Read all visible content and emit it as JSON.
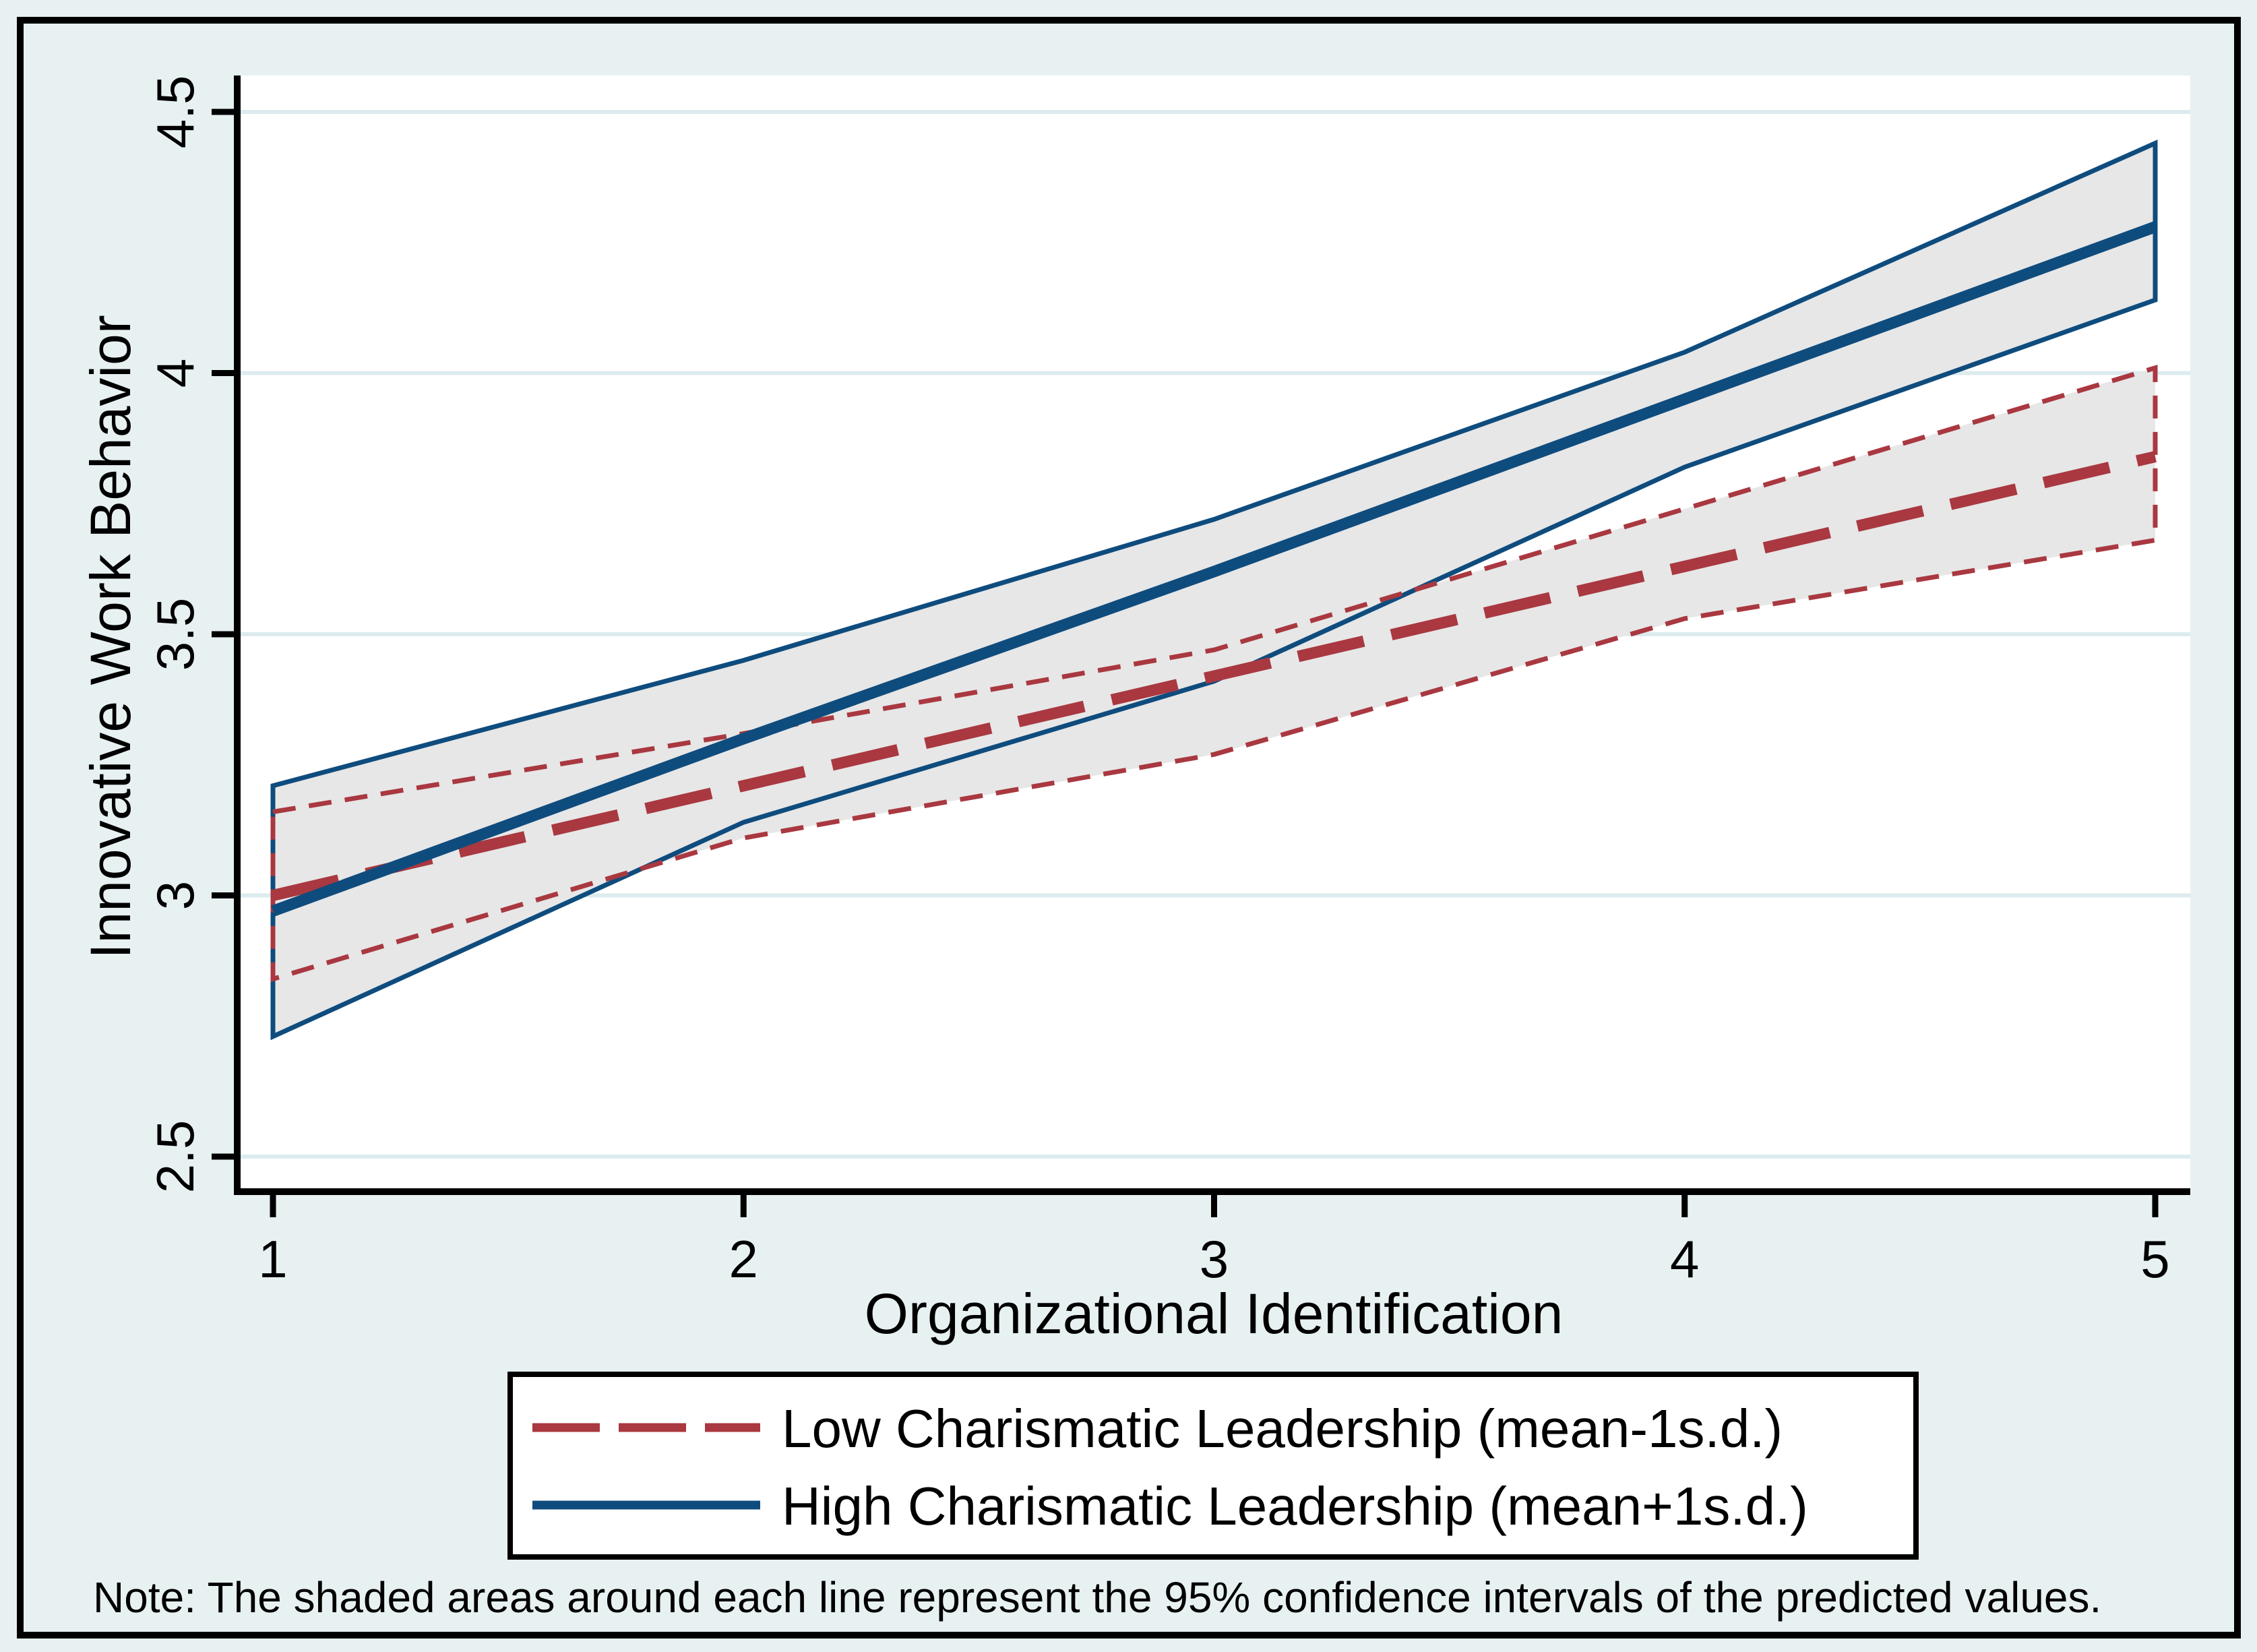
{
  "figure": {
    "background_color": "#e8f1f2",
    "plot_background": "#ffffff",
    "gridline_color": "#dcebee",
    "note": "Note: The shaded areas around each line represent the 95% confidence intervals of the predicted values."
  },
  "axes": {
    "x": {
      "title": "Organizational Identification",
      "tick_labels": [
        "1",
        "2",
        "3",
        "4",
        "5"
      ],
      "tick_values": [
        1,
        2,
        3,
        4,
        5
      ]
    },
    "y": {
      "title": "Innovative Work Behavior",
      "tick_labels": [
        "2.5",
        "3",
        "3.5",
        "4",
        "4.5"
      ],
      "tick_values": [
        2.5,
        3,
        3.5,
        4,
        4.5
      ]
    }
  },
  "legend": {
    "items": [
      {
        "label": "Low Charismatic Leadership (mean-1s.d.)",
        "color": "#a93840",
        "style": "dashed"
      },
      {
        "label": "High Charismatic Leadership (mean+1s.d.)",
        "color": "#0f4c7e",
        "style": "solid"
      }
    ]
  },
  "chart_data": {
    "type": "line",
    "title": "",
    "xlabel": "Organizational Identification",
    "ylabel": "Innovative Work Behavior",
    "x": [
      1,
      2,
      3,
      4,
      5
    ],
    "x_ticks": [
      1,
      2,
      3,
      4,
      5
    ],
    "y_ticks": [
      2.5,
      3,
      3.5,
      4,
      4.5
    ],
    "xlim": [
      0.92,
      5.07
    ],
    "ylim": [
      2.43,
      4.57
    ],
    "grid": true,
    "legend_position": "bottom",
    "ci_note": "Shaded areas are 95% confidence intervals of the predicted values",
    "ci_fill": "#e7e7e7",
    "series": [
      {
        "name": "Low Charismatic Leadership (mean-1s.d.)",
        "color": "#a93840",
        "line_style": "dashed",
        "values": [
          3.0,
          3.21,
          3.42,
          3.63,
          3.84
        ],
        "ci_upper": [
          3.16,
          3.31,
          3.47,
          3.74,
          4.01
        ],
        "ci_lower": [
          2.84,
          3.11,
          3.27,
          3.53,
          3.68
        ]
      },
      {
        "name": "High Charismatic Leadership (mean+1s.d.)",
        "color": "#0f4c7e",
        "line_style": "solid",
        "values": [
          2.97,
          3.3,
          3.62,
          3.95,
          4.28
        ],
        "ci_upper": [
          3.21,
          3.45,
          3.72,
          4.04,
          4.44
        ],
        "ci_lower": [
          2.73,
          3.14,
          3.41,
          3.82,
          4.14
        ]
      }
    ]
  }
}
